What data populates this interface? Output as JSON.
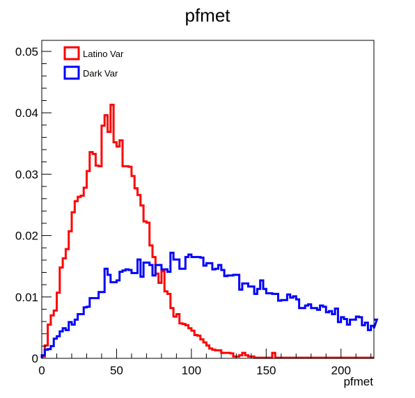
{
  "chart_data": {
    "type": "histogram-step",
    "title": "pfmet",
    "xlabel": "pfmet",
    "ylabel": "",
    "xlim": [
      0,
      222
    ],
    "ylim": [
      0,
      0.0518
    ],
    "bin_width": 2,
    "x_ticks": [
      0,
      50,
      100,
      150,
      200
    ],
    "y_ticks": [
      0,
      0.01,
      0.02,
      0.03,
      0.04,
      0.05
    ],
    "x_tick_labels": [
      "0",
      "50",
      "100",
      "150",
      "200"
    ],
    "y_tick_labels": [
      "0",
      "0.01",
      "0.02",
      "0.03",
      "0.04",
      "0.05"
    ],
    "legend_position": "top-left",
    "series": [
      {
        "name": "Latino Var",
        "color": "#ff0000",
        "values": [
          0.0003,
          0.0021,
          0.0055,
          0.007,
          0.0078,
          0.0107,
          0.0148,
          0.0163,
          0.0178,
          0.0207,
          0.0238,
          0.0256,
          0.0263,
          0.0265,
          0.0278,
          0.0305,
          0.0336,
          0.0333,
          0.0314,
          0.0313,
          0.0379,
          0.0396,
          0.0369,
          0.0413,
          0.0352,
          0.0345,
          0.0355,
          0.0313,
          0.0313,
          0.0312,
          0.0297,
          0.0277,
          0.0266,
          0.0249,
          0.0223,
          0.0221,
          0.0184,
          0.0165,
          0.0138,
          0.0123,
          0.0142,
          0.0109,
          0.0105,
          0.0082,
          0.0068,
          0.0072,
          0.0057,
          0.0056,
          0.0054,
          0.0049,
          0.0045,
          0.0038,
          0.0037,
          0.0031,
          0.0026,
          0.0021,
          0.0016,
          0.0014,
          0.0013,
          0.0013,
          0.0009,
          0.0009,
          0.0009,
          0.0008,
          0.0003,
          0.0003,
          0.0005,
          0.0009,
          0.0005,
          0.0003,
          0.0003,
          0.0001,
          0.0001,
          0.0001,
          0.0001,
          0.0001,
          0.0001,
          0.0009,
          0.0001,
          0.0001,
          0.0001,
          0.0001,
          0.0001,
          0.0001,
          0.0001,
          0.0001,
          0.0001,
          0.0001,
          0.0001,
          0.0001,
          0.0001,
          0.0001,
          0.0001,
          0.0001,
          0.0001,
          0.0001,
          0.0001,
          0.0001,
          0.0001,
          0.0001,
          0.0001,
          0.0001,
          0.0001,
          0.0001,
          0.0001,
          0.0001,
          0.0001,
          0.0001,
          0.0001,
          0.0001,
          0.0001
        ]
      },
      {
        "name": "Dark Var",
        "color": "#0000ff",
        "values": [
          0.0005,
          0.0014,
          0.0015,
          0.002,
          0.0032,
          0.0036,
          0.0044,
          0.0049,
          0.0046,
          0.0059,
          0.0055,
          0.0063,
          0.0072,
          0.0072,
          0.0083,
          0.0084,
          0.0098,
          0.0098,
          0.0098,
          0.0108,
          0.0108,
          0.0146,
          0.0136,
          0.0124,
          0.0124,
          0.0127,
          0.0141,
          0.0143,
          0.0145,
          0.0144,
          0.0139,
          0.0139,
          0.0161,
          0.0133,
          0.0156,
          0.0156,
          0.0152,
          0.0135,
          0.0152,
          0.0152,
          0.0145,
          0.0145,
          0.0141,
          0.0172,
          0.0161,
          0.0161,
          0.0146,
          0.0146,
          0.0165,
          0.0169,
          0.0165,
          0.0165,
          0.0165,
          0.0164,
          0.0151,
          0.0155,
          0.0155,
          0.0145,
          0.0146,
          0.0152,
          0.0144,
          0.0134,
          0.0135,
          0.0135,
          0.0136,
          0.0136,
          0.0112,
          0.0122,
          0.0122,
          0.0117,
          0.0117,
          0.0105,
          0.0113,
          0.0127,
          0.0113,
          0.0106,
          0.0106,
          0.0105,
          0.0105,
          0.0094,
          0.0095,
          0.0095,
          0.0104,
          0.0099,
          0.0101,
          0.0096,
          0.0082,
          0.0082,
          0.0086,
          0.0088,
          0.0082,
          0.0082,
          0.0079,
          0.0086,
          0.0084,
          0.0075,
          0.0077,
          0.0072,
          0.0081,
          0.0059,
          0.0067,
          0.0064,
          0.0055,
          0.0063,
          0.0063,
          0.0068,
          0.0067,
          0.0054,
          0.0058,
          0.0046,
          0.0053,
          0.0049,
          0.0063
        ]
      }
    ]
  }
}
